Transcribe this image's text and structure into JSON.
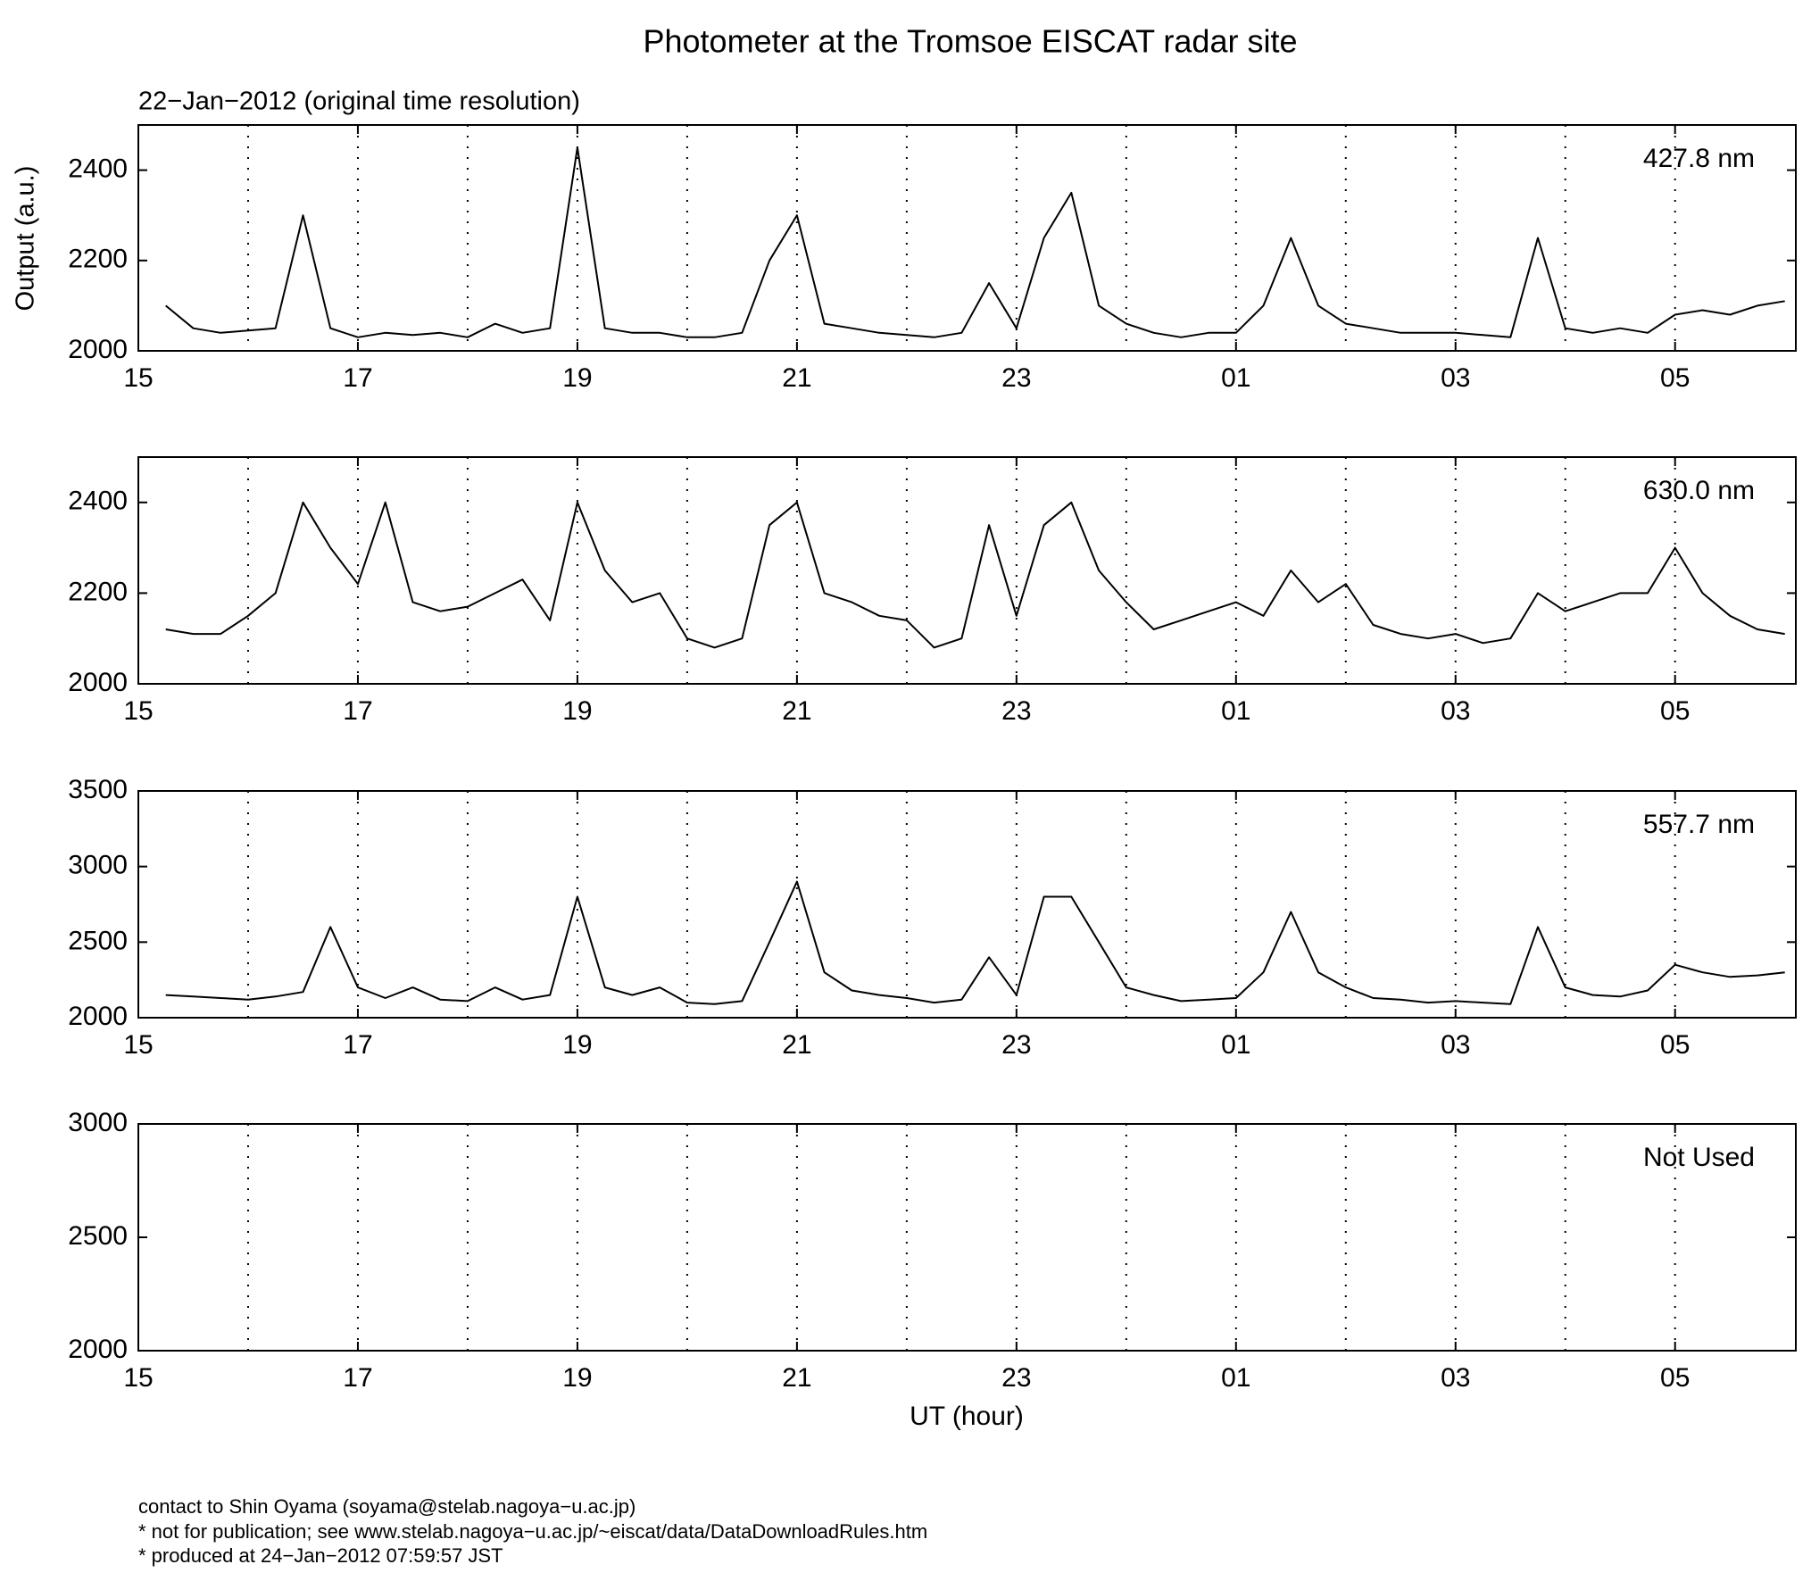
{
  "chart_data": [
    {
      "type": "line",
      "title": "Photometer at the Tromsoe EISCAT radar site",
      "subtitle": "22−Jan−2012 (original time resolution)",
      "ylabel": "Output (a.u.)",
      "annotation": "427.8 nm",
      "xlim": [
        15,
        30.1
      ],
      "xticks": [
        15,
        17,
        19,
        21,
        23,
        {
          "value": 25,
          "label": "01"
        },
        {
          "value": 27,
          "label": "03"
        },
        {
          "value": 29,
          "label": "05"
        }
      ],
      "xgrid": [
        16,
        17,
        18,
        19,
        20,
        21,
        22,
        23,
        24,
        25,
        26,
        27,
        28,
        29
      ],
      "grid": "dotted",
      "ylim": [
        2000,
        2500
      ],
      "yticks": [
        2000,
        2200,
        2400
      ],
      "x": [
        15.25,
        15.5,
        15.75,
        16,
        16.25,
        16.5,
        16.75,
        17,
        17.25,
        17.5,
        17.75,
        18,
        18.25,
        18.5,
        18.75,
        19,
        19.25,
        19.5,
        19.75,
        20,
        20.25,
        20.5,
        20.75,
        21,
        21.25,
        21.5,
        21.75,
        22,
        22.25,
        22.5,
        22.75,
        23,
        23.25,
        23.5,
        23.75,
        24,
        24.25,
        24.5,
        24.75,
        25,
        25.25,
        25.5,
        25.75,
        26,
        26.25,
        26.5,
        26.75,
        27,
        27.25,
        27.5,
        27.75,
        28,
        28.25,
        28.5,
        28.75,
        29,
        29.25,
        29.5,
        29.75,
        30
      ],
      "series": [
        {
          "name": "427.8 nm",
          "color": "#000000",
          "values": [
            2100,
            2050,
            2040,
            2045,
            2050,
            2300,
            2050,
            2030,
            2040,
            2035,
            2040,
            2030,
            2060,
            2040,
            2050,
            2450,
            2050,
            2040,
            2040,
            2030,
            2030,
            2040,
            2200,
            2300,
            2060,
            2050,
            2040,
            2035,
            2030,
            2040,
            2150,
            2050,
            2250,
            2350,
            2100,
            2060,
            2040,
            2030,
            2040,
            2040,
            2100,
            2250,
            2100,
            2060,
            2050,
            2040,
            2040,
            2040,
            2035,
            2030,
            2250,
            2050,
            2040,
            2050,
            2040,
            2080,
            2090,
            2080,
            2100,
            2110
          ]
        }
      ]
    },
    {
      "type": "line",
      "annotation": "630.0 nm",
      "xlim": [
        15,
        30.1
      ],
      "xticks": [
        15,
        17,
        19,
        21,
        23,
        {
          "value": 25,
          "label": "01"
        },
        {
          "value": 27,
          "label": "03"
        },
        {
          "value": 29,
          "label": "05"
        }
      ],
      "xgrid": [
        16,
        17,
        18,
        19,
        20,
        21,
        22,
        23,
        24,
        25,
        26,
        27,
        28,
        29
      ],
      "grid": "dotted",
      "ylim": [
        2000,
        2500
      ],
      "yticks": [
        2000,
        2200,
        2400
      ],
      "x": [
        15.25,
        15.5,
        15.75,
        16,
        16.25,
        16.5,
        16.75,
        17,
        17.25,
        17.5,
        17.75,
        18,
        18.25,
        18.5,
        18.75,
        19,
        19.25,
        19.5,
        19.75,
        20,
        20.25,
        20.5,
        20.75,
        21,
        21.25,
        21.5,
        21.75,
        22,
        22.25,
        22.5,
        22.75,
        23,
        23.25,
        23.5,
        23.75,
        24,
        24.25,
        24.5,
        24.75,
        25,
        25.25,
        25.5,
        25.75,
        26,
        26.25,
        26.5,
        26.75,
        27,
        27.25,
        27.5,
        27.75,
        28,
        28.25,
        28.5,
        28.75,
        29,
        29.25,
        29.5,
        29.75,
        30
      ],
      "series": [
        {
          "name": "630.0 nm",
          "color": "#000000",
          "values": [
            2120,
            2110,
            2110,
            2150,
            2200,
            2400,
            2300,
            2220,
            2400,
            2180,
            2160,
            2170,
            2200,
            2230,
            2140,
            2400,
            2250,
            2180,
            2200,
            2100,
            2080,
            2100,
            2350,
            2400,
            2200,
            2180,
            2150,
            2140,
            2080,
            2100,
            2350,
            2150,
            2350,
            2400,
            2250,
            2180,
            2120,
            2140,
            2160,
            2180,
            2150,
            2250,
            2180,
            2220,
            2130,
            2110,
            2100,
            2110,
            2090,
            2100,
            2200,
            2160,
            2180,
            2200,
            2200,
            2300,
            2200,
            2150,
            2120,
            2110
          ]
        }
      ]
    },
    {
      "type": "line",
      "annotation": "557.7 nm",
      "xlim": [
        15,
        30.1
      ],
      "xticks": [
        15,
        17,
        19,
        21,
        23,
        {
          "value": 25,
          "label": "01"
        },
        {
          "value": 27,
          "label": "03"
        },
        {
          "value": 29,
          "label": "05"
        }
      ],
      "xgrid": [
        16,
        17,
        18,
        19,
        20,
        21,
        22,
        23,
        24,
        25,
        26,
        27,
        28,
        29
      ],
      "grid": "dotted",
      "ylim": [
        2000,
        3500
      ],
      "yticks": [
        2000,
        2500,
        3000,
        3500
      ],
      "x": [
        15.25,
        15.5,
        15.75,
        16,
        16.25,
        16.5,
        16.75,
        17,
        17.25,
        17.5,
        17.75,
        18,
        18.25,
        18.5,
        18.75,
        19,
        19.25,
        19.5,
        19.75,
        20,
        20.25,
        20.5,
        20.75,
        21,
        21.25,
        21.5,
        21.75,
        22,
        22.25,
        22.5,
        22.75,
        23,
        23.25,
        23.5,
        23.75,
        24,
        24.25,
        24.5,
        24.75,
        25,
        25.25,
        25.5,
        25.75,
        26,
        26.25,
        26.5,
        26.75,
        27,
        27.25,
        27.5,
        27.75,
        28,
        28.25,
        28.5,
        28.75,
        29,
        29.25,
        29.5,
        29.75,
        30
      ],
      "series": [
        {
          "name": "557.7 nm",
          "color": "#000000",
          "values": [
            2150,
            2140,
            2130,
            2120,
            2140,
            2170,
            2600,
            2200,
            2130,
            2200,
            2120,
            2110,
            2200,
            2120,
            2150,
            2800,
            2200,
            2150,
            2200,
            2100,
            2090,
            2110,
            2500,
            2900,
            2300,
            2180,
            2150,
            2130,
            2100,
            2120,
            2400,
            2150,
            2800,
            2800,
            2500,
            2200,
            2150,
            2110,
            2120,
            2130,
            2300,
            2700,
            2300,
            2200,
            2130,
            2120,
            2100,
            2110,
            2100,
            2090,
            2600,
            2200,
            2150,
            2140,
            2180,
            2350,
            2300,
            2270,
            2280,
            2300
          ]
        }
      ]
    },
    {
      "type": "line",
      "annotation": "Not Used",
      "xlabel": "UT (hour)",
      "xlim": [
        15,
        30.1
      ],
      "xticks": [
        15,
        17,
        19,
        21,
        23,
        {
          "value": 25,
          "label": "01"
        },
        {
          "value": 27,
          "label": "03"
        },
        {
          "value": 29,
          "label": "05"
        }
      ],
      "xgrid": [
        16,
        17,
        18,
        19,
        20,
        21,
        22,
        23,
        24,
        25,
        26,
        27,
        28,
        29
      ],
      "grid": "dotted",
      "ylim": [
        2000,
        3000
      ],
      "yticks": [
        2000,
        2500,
        3000
      ],
      "x": [],
      "series": []
    }
  ],
  "footer": [
    "contact to Shin Oyama (soyama@stelab.nagoya−u.ac.jp)",
    "* not for publication; see www.stelab.nagoya−u.ac.jp/~eiscat/data/DataDownloadRules.htm",
    "* produced at 24−Jan−2012 07:59:57 JST"
  ]
}
